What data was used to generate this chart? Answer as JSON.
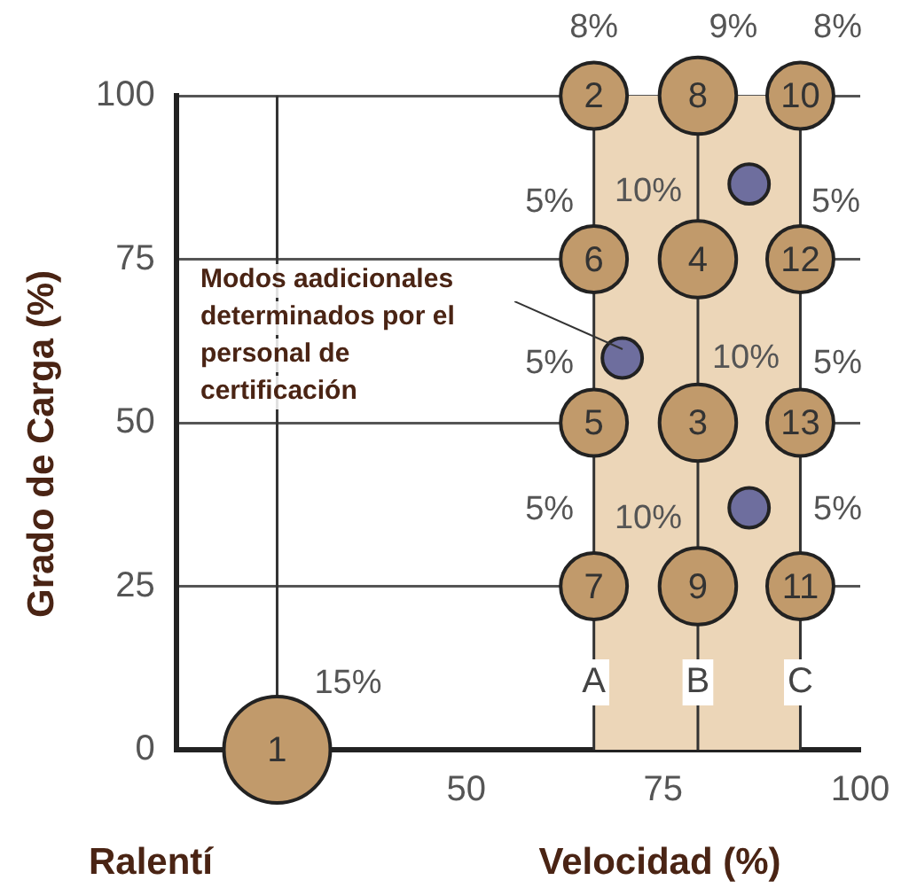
{
  "chart_data": {
    "type": "bubble",
    "xlabel": "Velocidad (%)",
    "ylabel": "Grado de Carga (%)",
    "xlim": [
      13.2,
      100
    ],
    "xticks": [
      50,
      75,
      100
    ],
    "ylim": [
      0,
      100
    ],
    "yticks": [
      0,
      25,
      50,
      75,
      100
    ],
    "grid": "y",
    "series": [
      {
        "color": "#c19a6b",
        "x": [
          26,
          66.2,
          79.4,
          92.4,
          66.2,
          79.4,
          92.4,
          66.2,
          79.4,
          92.4,
          66.2,
          79.4,
          92.4
        ],
        "values": [
          0,
          100,
          100,
          100,
          75,
          75,
          75,
          50,
          50,
          50,
          25,
          25,
          25
        ],
        "sizes": [
          1,
          0.39,
          0.52,
          0.39,
          0.39,
          0.52,
          0.39,
          0.39,
          0.52,
          0.39,
          0.39,
          0.52,
          0.39
        ]
      },
      {
        "color": "#6e6e9e",
        "x": [
          85.9,
          69.8,
          85.9
        ],
        "values": [
          86.5,
          59.9,
          37
        ],
        "sizes": [
          0.14,
          0.14,
          0.14
        ]
      }
    ],
    "bands": [
      {
        "axis": "x",
        "from": 66.2,
        "to": 92.4,
        "color": "#ecd6b8"
      }
    ],
    "ref_lines": [
      {
        "axis": "x",
        "value": 26
      },
      {
        "axis": "x",
        "value": 66.2,
        "label": "A"
      },
      {
        "axis": "x",
        "value": 79.4,
        "label": "B"
      },
      {
        "axis": "x",
        "value": 92.4,
        "label": "C"
      }
    ],
    "annotations": [
      {
        "text": "1",
        "x": 26,
        "y": 0
      },
      {
        "text": "2",
        "x": 66.2,
        "y": 100
      },
      {
        "text": "8",
        "x": 79.4,
        "y": 100
      },
      {
        "text": "10",
        "x": 92.4,
        "y": 100
      },
      {
        "text": "6",
        "x": 66.2,
        "y": 75
      },
      {
        "text": "4",
        "x": 79.4,
        "y": 75
      },
      {
        "text": "12",
        "x": 92.4,
        "y": 75
      },
      {
        "text": "5",
        "x": 66.2,
        "y": 50
      },
      {
        "text": "3",
        "x": 79.4,
        "y": 50
      },
      {
        "text": "13",
        "x": 92.4,
        "y": 50
      },
      {
        "text": "7",
        "x": 66.2,
        "y": 25
      },
      {
        "text": "9",
        "x": 79.4,
        "y": 25
      },
      {
        "text": "11",
        "x": 92.4,
        "y": 25
      },
      {
        "text": "15%",
        "x": 26,
        "y": 0
      },
      {
        "text": "8%",
        "x": 66.2,
        "y": 100
      },
      {
        "text": "9%",
        "x": 79.4,
        "y": 100
      },
      {
        "text": "8%",
        "x": 92.4,
        "y": 100
      },
      {
        "text": "5%",
        "x": 66.2,
        "y": 75
      },
      {
        "text": "10%",
        "x": 79.4,
        "y": 75
      },
      {
        "text": "5%",
        "x": 92.4,
        "y": 75
      },
      {
        "text": "5%",
        "x": 66.2,
        "y": 50
      },
      {
        "text": "10%",
        "x": 79.4,
        "y": 50
      },
      {
        "text": "5%",
        "x": 92.4,
        "y": 50
      },
      {
        "text": "5%",
        "x": 66.2,
        "y": 25
      },
      {
        "text": "10%",
        "x": 79.4,
        "y": 25
      },
      {
        "text": "5%",
        "x": 92.4,
        "y": 25
      },
      "Modos aadicionales\ndeterminados por el\npersonal de\ncertificación",
      "Ralentí"
    ]
  }
}
